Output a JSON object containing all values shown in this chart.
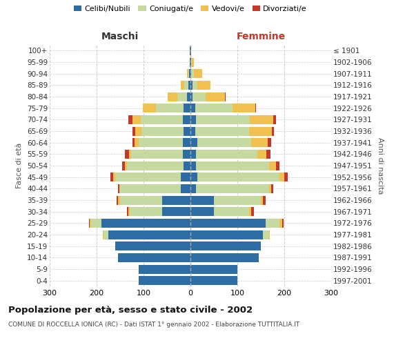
{
  "age_groups": [
    "0-4",
    "5-9",
    "10-14",
    "15-19",
    "20-24",
    "25-29",
    "30-34",
    "35-39",
    "40-44",
    "45-49",
    "50-54",
    "55-59",
    "60-64",
    "65-69",
    "70-74",
    "75-79",
    "80-84",
    "85-89",
    "90-94",
    "95-99",
    "100+"
  ],
  "birth_years": [
    "1997-2001",
    "1992-1996",
    "1987-1991",
    "1982-1986",
    "1977-1981",
    "1972-1976",
    "1967-1971",
    "1962-1966",
    "1957-1961",
    "1952-1956",
    "1947-1951",
    "1942-1946",
    "1937-1941",
    "1932-1936",
    "1927-1931",
    "1922-1926",
    "1917-1921",
    "1912-1916",
    "1907-1911",
    "1902-1906",
    "≤ 1901"
  ],
  "maschi": {
    "celibi": [
      110,
      110,
      155,
      160,
      175,
      190,
      60,
      60,
      20,
      20,
      15,
      16,
      16,
      14,
      16,
      14,
      8,
      5,
      3,
      2,
      1
    ],
    "coniugati": [
      0,
      0,
      0,
      0,
      10,
      22,
      70,
      90,
      130,
      140,
      120,
      110,
      95,
      90,
      90,
      60,
      20,
      8,
      2,
      0,
      0
    ],
    "vedovi": [
      0,
      0,
      0,
      0,
      2,
      2,
      3,
      4,
      2,
      5,
      5,
      5,
      8,
      14,
      18,
      28,
      20,
      8,
      2,
      0,
      0
    ],
    "divorziati": [
      0,
      0,
      0,
      0,
      0,
      2,
      3,
      3,
      3,
      5,
      5,
      8,
      5,
      5,
      8,
      0,
      0,
      0,
      0,
      0,
      0
    ]
  },
  "femmine": {
    "nubili": [
      100,
      100,
      145,
      150,
      155,
      160,
      50,
      50,
      12,
      15,
      12,
      12,
      14,
      10,
      12,
      10,
      5,
      4,
      2,
      1,
      1
    ],
    "coniugate": [
      0,
      0,
      0,
      0,
      12,
      30,
      75,
      100,
      155,
      175,
      155,
      130,
      115,
      115,
      115,
      80,
      28,
      10,
      5,
      2,
      0
    ],
    "vedove": [
      0,
      0,
      0,
      0,
      2,
      5,
      5,
      5,
      5,
      10,
      15,
      20,
      35,
      48,
      50,
      48,
      40,
      28,
      18,
      5,
      1
    ],
    "divorziate": [
      0,
      0,
      0,
      0,
      0,
      3,
      5,
      5,
      5,
      8,
      8,
      8,
      8,
      5,
      5,
      2,
      2,
      0,
      0,
      0,
      0
    ]
  },
  "colors": {
    "celibi_nubili": "#2e6da4",
    "coniugati": "#c5d9a0",
    "vedovi": "#f0c050",
    "divorziati": "#c0392b"
  },
  "legend_labels": [
    "Celibi/Nubili",
    "Coniugati/e",
    "Vedovi/e",
    "Divorziati/e"
  ],
  "title": "Popolazione per età, sesso e stato civile - 2002",
  "subtitle": "COMUNE DI ROCCELLA IONICA (RC) - Dati ISTAT 1° gennaio 2002 - Elaborazione TUTTITALIA.IT",
  "ylabel_left": "Fasce di età",
  "ylabel_right": "Anni di nascita",
  "header_maschi": "Maschi",
  "header_femmine": "Femmine",
  "xlim": 300,
  "bg_color": "#ffffff",
  "grid_color": "#cccccc"
}
